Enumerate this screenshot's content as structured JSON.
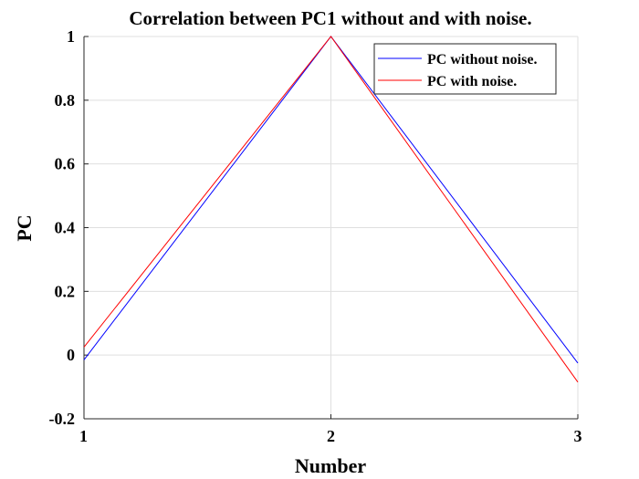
{
  "chart_data": {
    "type": "line",
    "title": "Correlation between PC1 without and with noise.",
    "xlabel": "Number",
    "ylabel": "PC",
    "x": [
      1,
      2,
      3
    ],
    "xlim": [
      1,
      3
    ],
    "ylim": [
      -0.2,
      1
    ],
    "xticks": [
      1,
      2,
      3
    ],
    "xtick_labels": [
      "1",
      "2",
      "3"
    ],
    "yticks": [
      -0.2,
      0,
      0.2,
      0.4,
      0.6,
      0.8,
      1
    ],
    "ytick_labels": [
      "-0.2",
      "0",
      "0.2",
      "0.4",
      "0.6",
      "0.8",
      "1"
    ],
    "grid": true,
    "legend_position": "top-right",
    "series": [
      {
        "name": "PC without noise.",
        "color": "#0000ff",
        "values": [
          -0.015,
          1,
          -0.025
        ]
      },
      {
        "name": "PC with noise.",
        "color": "#ff0000",
        "values": [
          0.025,
          1,
          -0.085
        ]
      }
    ]
  }
}
